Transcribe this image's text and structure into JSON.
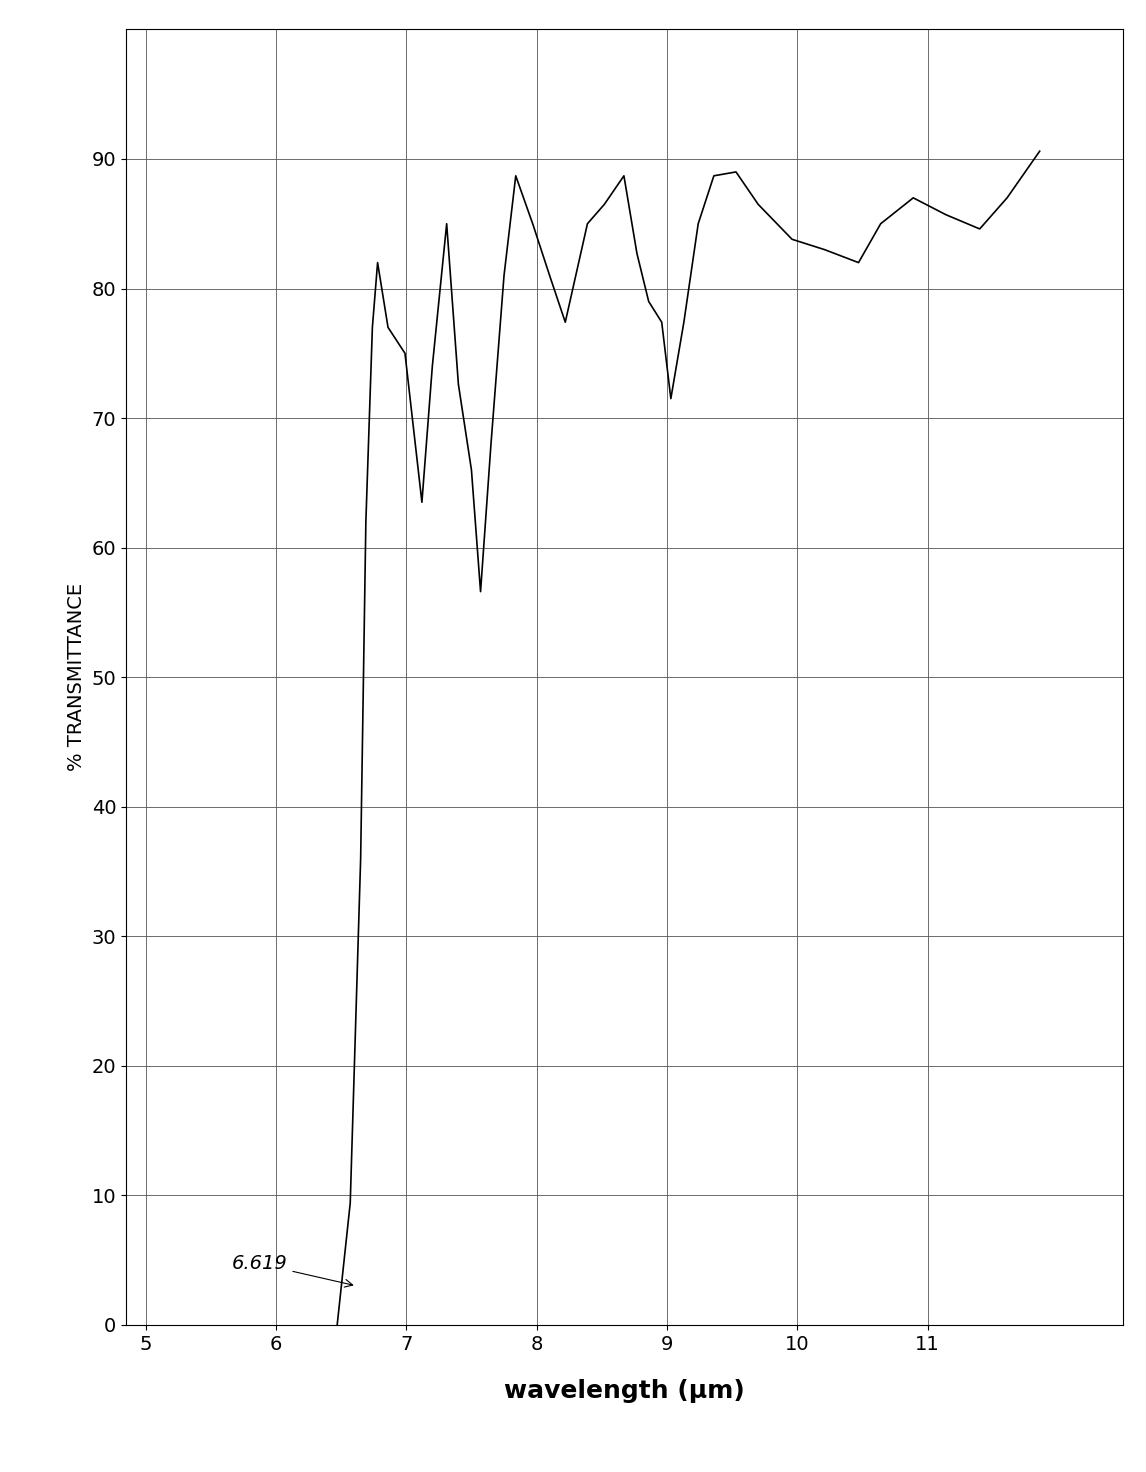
{
  "chart_data": {
    "type": "line",
    "x_label": "wavelength (μm)",
    "y_label": "% TRANSMITTANCE",
    "x": [
      6.47,
      6.57,
      6.65,
      6.69,
      6.74,
      6.78,
      6.86,
      6.99,
      7.12,
      7.2,
      7.31,
      7.4,
      7.5,
      7.57,
      7.65,
      7.75,
      7.84,
      7.97,
      8.1,
      8.22,
      8.39,
      8.52,
      8.67,
      8.77,
      8.86,
      8.96,
      9.03,
      9.13,
      9.24,
      9.36,
      9.53,
      9.7,
      9.96,
      10.21,
      10.47,
      10.64,
      10.89,
      11.14,
      11.4,
      11.61,
      11.86
    ],
    "values": [
      0,
      9.4,
      36,
      62,
      77,
      82,
      77,
      75,
      63.5,
      74,
      85,
      72.6,
      66,
      56.6,
      68,
      81,
      88.7,
      85,
      81,
      77.4,
      85,
      86.5,
      88.7,
      82.7,
      79,
      77.4,
      71.5,
      77.4,
      85,
      88.7,
      89,
      86.5,
      83.8,
      83,
      82,
      85,
      87,
      85.7,
      84.6,
      87,
      90.6
    ],
    "color": "#000000",
    "xlim": [
      4.85,
      12.5
    ],
    "xticks": [
      5,
      6,
      7,
      8,
      9,
      10,
      11
    ],
    "ylim": [
      0,
      100
    ],
    "yticks": [
      0,
      10,
      20,
      30,
      40,
      50,
      60,
      70,
      80,
      90
    ],
    "grid": true,
    "annotations": [
      {
        "text": "6.619"
      }
    ]
  }
}
